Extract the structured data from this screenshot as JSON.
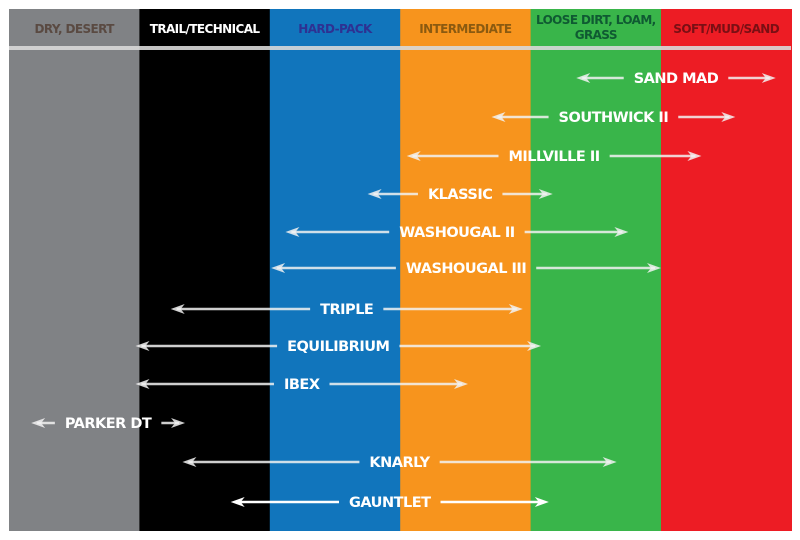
{
  "columns": [
    {
      "label": [
        "DRY, DESERT"
      ],
      "bg": "#808285",
      "text_color": "#5a4a42"
    },
    {
      "label": [
        "TRAIL/TECHNICAL"
      ],
      "bg": "#000000",
      "text_color": "#ffffff"
    },
    {
      "label": [
        "HARD-PACK"
      ],
      "bg": "#1175bc",
      "text_color": "#2e3192"
    },
    {
      "label": [
        "INTERMEDIATE"
      ],
      "bg": "#f7941d",
      "text_color": "#8b5a10"
    },
    {
      "label": [
        "LOOSE DIRT, LOAM,",
        "GRASS"
      ],
      "bg": "#39b54a",
      "text_color": "#0f5a32"
    },
    {
      "label": [
        "SOFT/MUD/SAND"
      ],
      "bg": "#ed1c24",
      "text_color": "#7a0f14"
    }
  ],
  "tires": [
    {
      "name": "SAND MAD",
      "range": [
        4.35,
        5.88
      ],
      "color": "#f2f2f2"
    },
    {
      "name": "SOUTHWICK II",
      "range": [
        3.7,
        5.57
      ],
      "color": "#f2f2f2"
    },
    {
      "name": "MILLVILLE II",
      "range": [
        3.05,
        5.31
      ],
      "color": "#f2f2f2"
    },
    {
      "name": "KLASSIC",
      "range": [
        2.75,
        4.17
      ],
      "color": "#f2f2f2"
    },
    {
      "name": "WASHOUGAL II",
      "range": [
        2.12,
        4.75
      ],
      "color": "#f2f2f2"
    },
    {
      "name": "WASHOUGAL III",
      "range": [
        2.01,
        5.0
      ],
      "color": "#f2f2f2"
    },
    {
      "name": "TRIPLE",
      "range": [
        1.24,
        3.94
      ],
      "color": "#f2f2f2"
    },
    {
      "name": "EQUILIBRIUM",
      "range": [
        0.97,
        4.08
      ],
      "color": "#f2f2f2"
    },
    {
      "name": "IBEX",
      "range": [
        0.97,
        3.52
      ],
      "color": "#f2f2f2"
    },
    {
      "name": "PARKER DT",
      "range": [
        0.17,
        1.35
      ],
      "color": "#f2f2f2"
    },
    {
      "name": "KNARLY",
      "range": [
        1.33,
        4.66
      ],
      "color": "#f2f2f2"
    },
    {
      "name": "GAUNTLET",
      "range": [
        1.7,
        4.14
      ],
      "color": "#ffffff"
    }
  ]
}
